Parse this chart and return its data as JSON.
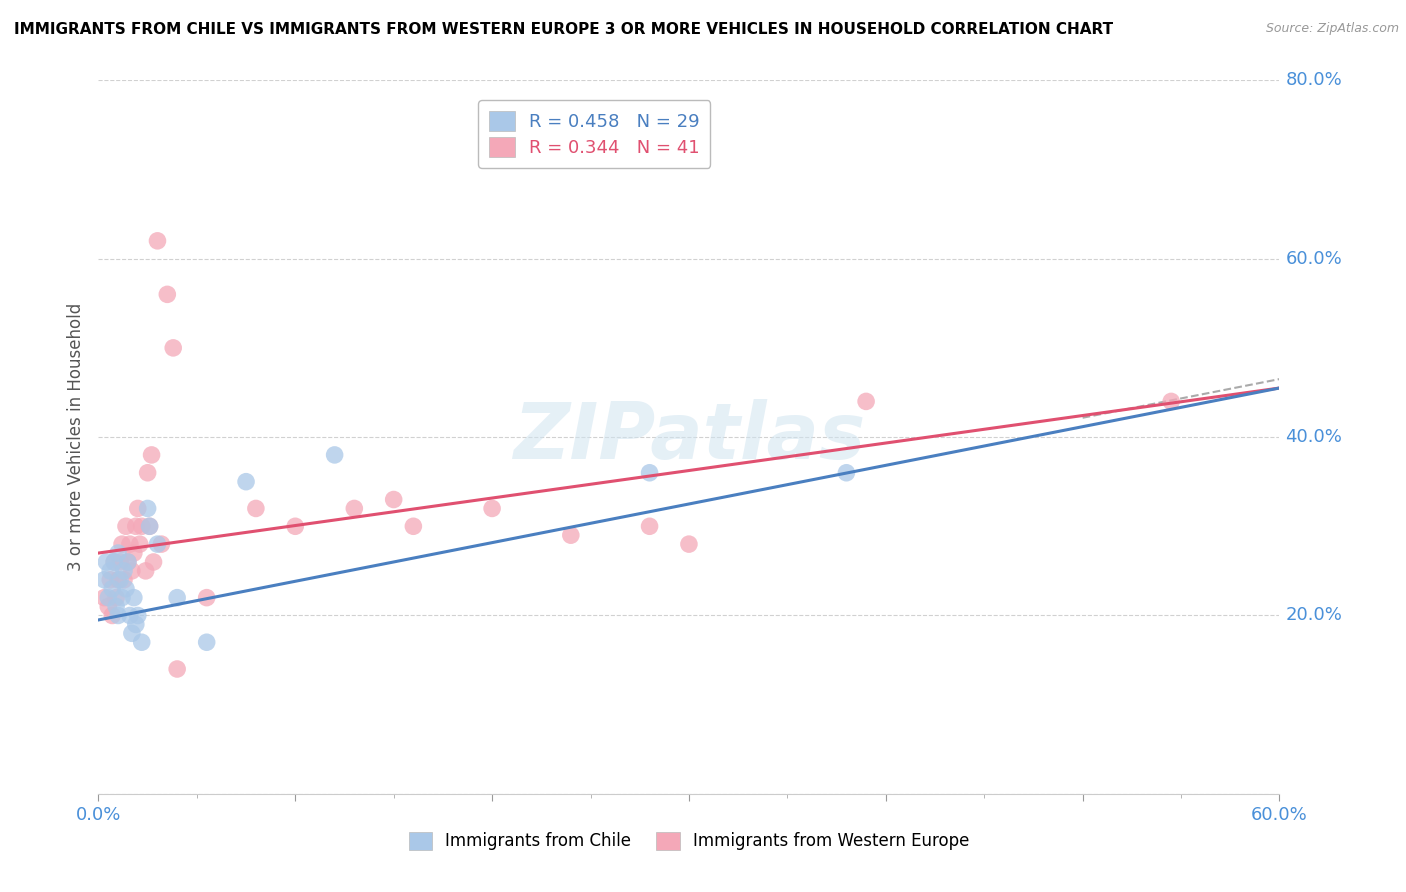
{
  "title": "IMMIGRANTS FROM CHILE VS IMMIGRANTS FROM WESTERN EUROPE 3 OR MORE VEHICLES IN HOUSEHOLD CORRELATION CHART",
  "source": "Source: ZipAtlas.com",
  "ylabel": "3 or more Vehicles in Household",
  "xlim": [
    0.0,
    0.6
  ],
  "ylim": [
    0.0,
    0.8
  ],
  "xtick_vals": [
    0.0,
    0.1,
    0.2,
    0.3,
    0.4,
    0.5,
    0.6
  ],
  "ytick_vals": [
    0.0,
    0.2,
    0.4,
    0.6,
    0.8
  ],
  "legend_blue_label": "R = 0.458   N = 29",
  "legend_pink_label": "R = 0.344   N = 41",
  "legend_x_label": "Immigrants from Chile",
  "legend_y_label": "Immigrants from Western Europe",
  "watermark": "ZIPatlas",
  "blue_color": "#aac8e8",
  "pink_color": "#f4a8b8",
  "blue_line_color": "#4a7fc0",
  "pink_line_color": "#e05070",
  "dash_color": "#aaaaaa",
  "blue_scatter": [
    [
      0.003,
      0.24
    ],
    [
      0.004,
      0.26
    ],
    [
      0.005,
      0.22
    ],
    [
      0.006,
      0.25
    ],
    [
      0.007,
      0.23
    ],
    [
      0.008,
      0.26
    ],
    [
      0.009,
      0.21
    ],
    [
      0.01,
      0.27
    ],
    [
      0.01,
      0.2
    ],
    [
      0.011,
      0.24
    ],
    [
      0.012,
      0.22
    ],
    [
      0.013,
      0.25
    ],
    [
      0.014,
      0.23
    ],
    [
      0.015,
      0.26
    ],
    [
      0.016,
      0.2
    ],
    [
      0.017,
      0.18
    ],
    [
      0.018,
      0.22
    ],
    [
      0.019,
      0.19
    ],
    [
      0.02,
      0.2
    ],
    [
      0.022,
      0.17
    ],
    [
      0.025,
      0.32
    ],
    [
      0.026,
      0.3
    ],
    [
      0.03,
      0.28
    ],
    [
      0.04,
      0.22
    ],
    [
      0.055,
      0.17
    ],
    [
      0.075,
      0.35
    ],
    [
      0.12,
      0.38
    ],
    [
      0.28,
      0.36
    ],
    [
      0.38,
      0.36
    ]
  ],
  "pink_scatter": [
    [
      0.003,
      0.22
    ],
    [
      0.005,
      0.21
    ],
    [
      0.006,
      0.24
    ],
    [
      0.007,
      0.2
    ],
    [
      0.008,
      0.26
    ],
    [
      0.009,
      0.22
    ],
    [
      0.01,
      0.24
    ],
    [
      0.011,
      0.26
    ],
    [
      0.012,
      0.28
    ],
    [
      0.013,
      0.24
    ],
    [
      0.014,
      0.3
    ],
    [
      0.015,
      0.26
    ],
    [
      0.016,
      0.28
    ],
    [
      0.017,
      0.25
    ],
    [
      0.018,
      0.27
    ],
    [
      0.019,
      0.3
    ],
    [
      0.02,
      0.32
    ],
    [
      0.021,
      0.28
    ],
    [
      0.022,
      0.3
    ],
    [
      0.024,
      0.25
    ],
    [
      0.025,
      0.36
    ],
    [
      0.026,
      0.3
    ],
    [
      0.027,
      0.38
    ],
    [
      0.028,
      0.26
    ],
    [
      0.03,
      0.62
    ],
    [
      0.032,
      0.28
    ],
    [
      0.035,
      0.56
    ],
    [
      0.038,
      0.5
    ],
    [
      0.04,
      0.14
    ],
    [
      0.055,
      0.22
    ],
    [
      0.08,
      0.32
    ],
    [
      0.1,
      0.3
    ],
    [
      0.13,
      0.32
    ],
    [
      0.15,
      0.33
    ],
    [
      0.16,
      0.3
    ],
    [
      0.2,
      0.32
    ],
    [
      0.24,
      0.29
    ],
    [
      0.28,
      0.3
    ],
    [
      0.3,
      0.28
    ],
    [
      0.39,
      0.44
    ],
    [
      0.545,
      0.44
    ]
  ]
}
